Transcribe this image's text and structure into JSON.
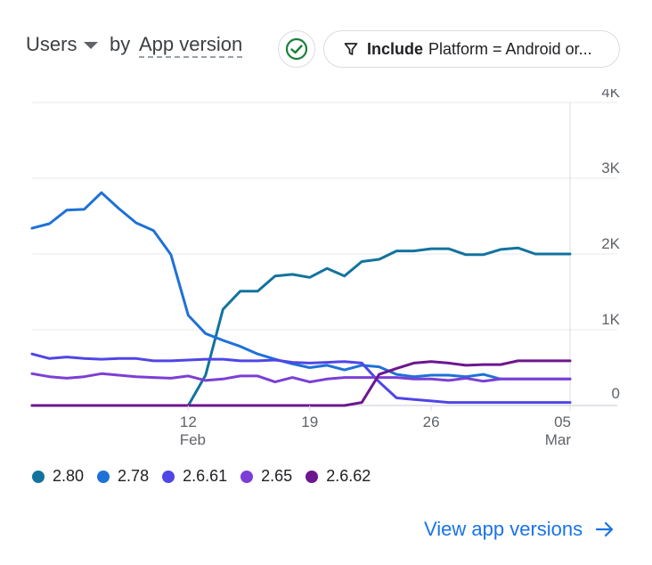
{
  "header": {
    "metric_label": "Users",
    "by_label": "by",
    "dimension_label": "App version",
    "filter": {
      "keyword": "Include",
      "text": "Platform = Android or..."
    }
  },
  "view_link_label": "View app versions",
  "icons": {
    "check": "check-circle-icon",
    "filter": "filter-icon",
    "caret": "caret-down-icon",
    "arrow": "arrow-right-icon"
  },
  "chart_data": {
    "type": "line",
    "title": "",
    "xlabel": "",
    "ylabel": "",
    "y_ticks": [
      "0",
      "1K",
      "2K",
      "3K",
      "4K"
    ],
    "ylim": [
      0,
      4000
    ],
    "x_ticks": [
      {
        "day": "12",
        "month": "Feb"
      },
      {
        "day": "19",
        "month": ""
      },
      {
        "day": "26",
        "month": ""
      },
      {
        "day": "05",
        "month": "Mar"
      }
    ],
    "x": [
      "Feb 3",
      "Feb 4",
      "Feb 5",
      "Feb 6",
      "Feb 7",
      "Feb 8",
      "Feb 9",
      "Feb 10",
      "Feb 11",
      "Feb 12",
      "Feb 13",
      "Feb 14",
      "Feb 15",
      "Feb 16",
      "Feb 17",
      "Feb 18",
      "Feb 19",
      "Feb 20",
      "Feb 21",
      "Feb 22",
      "Feb 23",
      "Feb 24",
      "Feb 25",
      "Feb 26",
      "Feb 27",
      "Feb 28",
      "Feb 29",
      "Mar 1",
      "Mar 2",
      "Mar 3",
      "Mar 4",
      "Mar 5"
    ],
    "series": [
      {
        "name": "2.80",
        "color": "#12739e",
        "values": [
          0,
          0,
          0,
          0,
          0,
          0,
          0,
          0,
          0,
          0,
          400,
          1270,
          1510,
          1510,
          1710,
          1730,
          1690,
          1810,
          1710,
          1900,
          1930,
          2040,
          2040,
          2070,
          2070,
          1990,
          1990,
          2060,
          2080,
          2000,
          2000,
          2000
        ]
      },
      {
        "name": "2.78",
        "color": "#1e71d8",
        "values": [
          2340,
          2400,
          2580,
          2590,
          2810,
          2600,
          2410,
          2310,
          1990,
          1190,
          950,
          860,
          780,
          680,
          610,
          550,
          500,
          530,
          470,
          530,
          510,
          410,
          380,
          400,
          400,
          380,
          410,
          350,
          350,
          350,
          350,
          350
        ]
      },
      {
        "name": "2.6.61",
        "color": "#4f46e6",
        "values": [
          680,
          620,
          640,
          620,
          610,
          620,
          620,
          590,
          590,
          600,
          610,
          610,
          590,
          590,
          600,
          570,
          560,
          570,
          580,
          560,
          310,
          100,
          80,
          60,
          40,
          40,
          40,
          40,
          40,
          40,
          40,
          40
        ]
      },
      {
        "name": "2.65",
        "color": "#7b3fd6",
        "values": [
          420,
          380,
          360,
          380,
          420,
          400,
          380,
          370,
          360,
          390,
          330,
          350,
          390,
          390,
          310,
          370,
          310,
          350,
          370,
          370,
          370,
          370,
          350,
          350,
          330,
          360,
          320,
          350,
          350,
          350,
          350,
          350
        ]
      },
      {
        "name": "2.6.62",
        "color": "#6c168f",
        "values": [
          0,
          0,
          0,
          0,
          0,
          0,
          0,
          0,
          0,
          0,
          0,
          0,
          0,
          0,
          0,
          0,
          0,
          0,
          0,
          40,
          410,
          490,
          560,
          580,
          560,
          530,
          540,
          540,
          590,
          590,
          590,
          590
        ]
      }
    ],
    "legend": [
      "2.80",
      "2.78",
      "2.6.61",
      "2.65",
      "2.6.62"
    ],
    "grid": true,
    "legend_position": "bottom-left"
  }
}
